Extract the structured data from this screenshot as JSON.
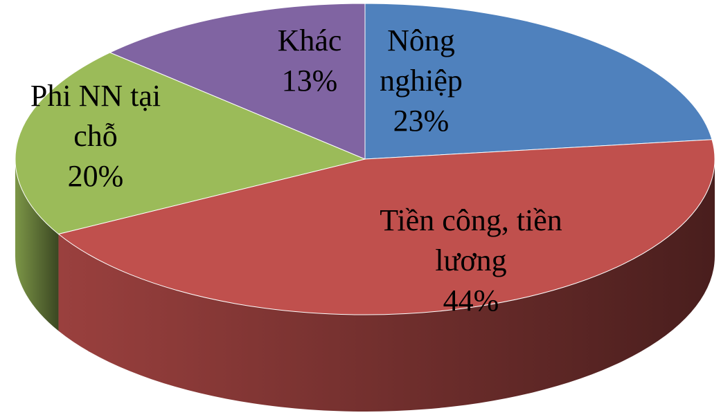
{
  "chart_data": {
    "type": "pie",
    "categories": [
      "Nông nghiệp",
      "Tiền công, tiền lương",
      "Phi NN tại chỗ",
      "Khác"
    ],
    "values": [
      23,
      44,
      20,
      13
    ],
    "value_labels": [
      "23%",
      "44%",
      "20%",
      "13%"
    ],
    "colors": [
      "#4f81bd",
      "#c0504d",
      "#9bbb59",
      "#8064a2"
    ]
  }
}
